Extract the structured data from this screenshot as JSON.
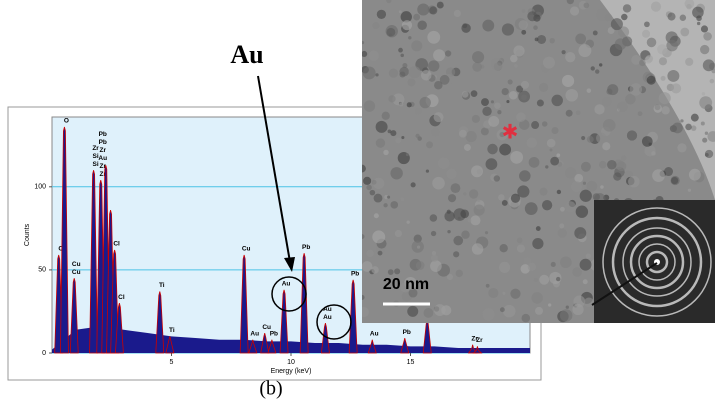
{
  "chart_data": {
    "type": "spectrum",
    "x_label": "Energy (keV)",
    "y_label": "Counts",
    "xlim": [
      0,
      20
    ],
    "ylim": [
      0,
      142
    ],
    "xticks": [
      5,
      10,
      15
    ],
    "yticks": [
      0,
      50,
      100
    ],
    "grid": true,
    "color": "#1a1a8c",
    "peak_outline": "#cc0000",
    "background": {
      "x": [
        0,
        1,
        2,
        3,
        4,
        5,
        6,
        7,
        8,
        9,
        10,
        11,
        12,
        13,
        14,
        15,
        16,
        17,
        18,
        19,
        20
      ],
      "values": [
        2,
        14,
        16,
        14,
        12,
        10,
        9,
        8,
        8,
        7,
        7,
        6,
        6,
        5,
        5,
        4,
        4,
        3,
        3,
        3,
        3
      ]
    },
    "peaks": [
      {
        "energy": 0.28,
        "counts": 59,
        "labels": [
          "C"
        ]
      },
      {
        "energy": 0.52,
        "counts": 136,
        "labels": [
          "O"
        ]
      },
      {
        "energy": 0.93,
        "counts": 45,
        "labels": [
          "Cu",
          "Cu"
        ]
      },
      {
        "energy": 1.74,
        "counts": 110,
        "labels": [
          "Zr",
          "Si",
          "Si"
        ]
      },
      {
        "energy": 2.04,
        "counts": 104,
        "labels": [
          "Pb",
          "Pb",
          "Zr",
          "Au",
          "Zr",
          "Zr"
        ]
      },
      {
        "energy": 2.25,
        "counts": 113
      },
      {
        "energy": 2.45,
        "counts": 86
      },
      {
        "energy": 2.62,
        "counts": 62,
        "labels": [
          "Cl"
        ]
      },
      {
        "energy": 2.82,
        "counts": 30,
        "labels": [
          "Cl"
        ]
      },
      {
        "energy": 4.51,
        "counts": 37,
        "labels": [
          "Ti"
        ]
      },
      {
        "energy": 4.93,
        "counts": 10,
        "labels": [
          "Ti"
        ]
      },
      {
        "energy": 8.04,
        "counts": 59,
        "labels": [
          "Cu"
        ]
      },
      {
        "energy": 8.4,
        "counts": 8,
        "labels": [
          "Au"
        ]
      },
      {
        "energy": 8.9,
        "counts": 12,
        "labels": [
          "Cu"
        ]
      },
      {
        "energy": 9.2,
        "counts": 8,
        "labels": [
          "Pb"
        ]
      },
      {
        "energy": 9.71,
        "counts": 38,
        "labels": [
          "Au"
        ]
      },
      {
        "energy": 10.55,
        "counts": 60,
        "labels": [
          "Pb"
        ]
      },
      {
        "energy": 11.44,
        "counts": 18,
        "labels": [
          "Au",
          "Au"
        ]
      },
      {
        "energy": 12.6,
        "counts": 44,
        "labels": [
          "Pb"
        ]
      },
      {
        "energy": 13.4,
        "counts": 8,
        "labels": [
          "Au"
        ]
      },
      {
        "energy": 14.76,
        "counts": 9,
        "labels": [
          "Pb"
        ]
      },
      {
        "energy": 15.7,
        "counts": 20
      },
      {
        "energy": 17.6,
        "counts": 5,
        "labels": [
          "Zr"
        ]
      },
      {
        "energy": 17.8,
        "counts": 4,
        "labels": [
          "Zr"
        ]
      }
    ],
    "annotation": "Au",
    "caption": "(b)",
    "scale_bar": "20 nm"
  }
}
